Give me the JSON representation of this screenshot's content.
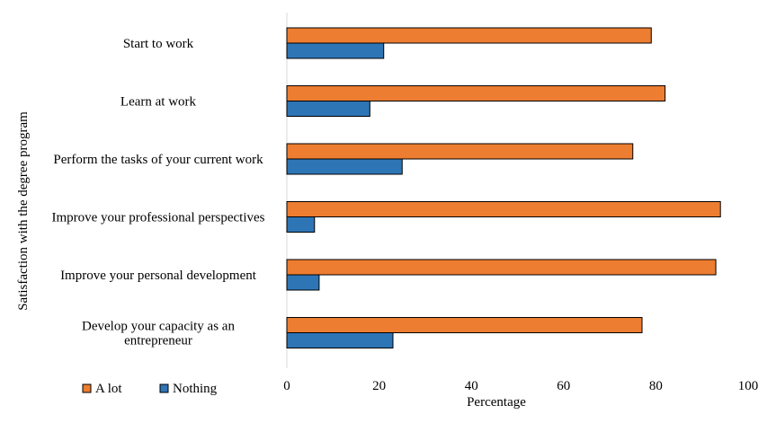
{
  "chart_data": {
    "type": "bar",
    "orientation": "horizontal",
    "categories": [
      [
        "Start to work"
      ],
      [
        "Learn at work"
      ],
      [
        "Perform the tasks of your current work"
      ],
      [
        "Improve your professional perspectives"
      ],
      [
        "Improve your personal development"
      ],
      [
        "Develop your capacity as an",
        "entrepreneur"
      ]
    ],
    "series": [
      {
        "name": "A lot",
        "color": "#ED7D31",
        "values": [
          79,
          82,
          75,
          94,
          93,
          77
        ]
      },
      {
        "name": "Nothing",
        "color": "#2E75B6",
        "values": [
          21,
          18,
          25,
          6,
          7,
          23
        ]
      }
    ],
    "xlabel": "Percentage",
    "ylabel": "Satisfaction with the degree program",
    "xlim": [
      0,
      100
    ],
    "xticks": [
      0,
      20,
      40,
      60,
      80,
      100
    ],
    "grid": false,
    "legend_position": "bottom-left"
  }
}
